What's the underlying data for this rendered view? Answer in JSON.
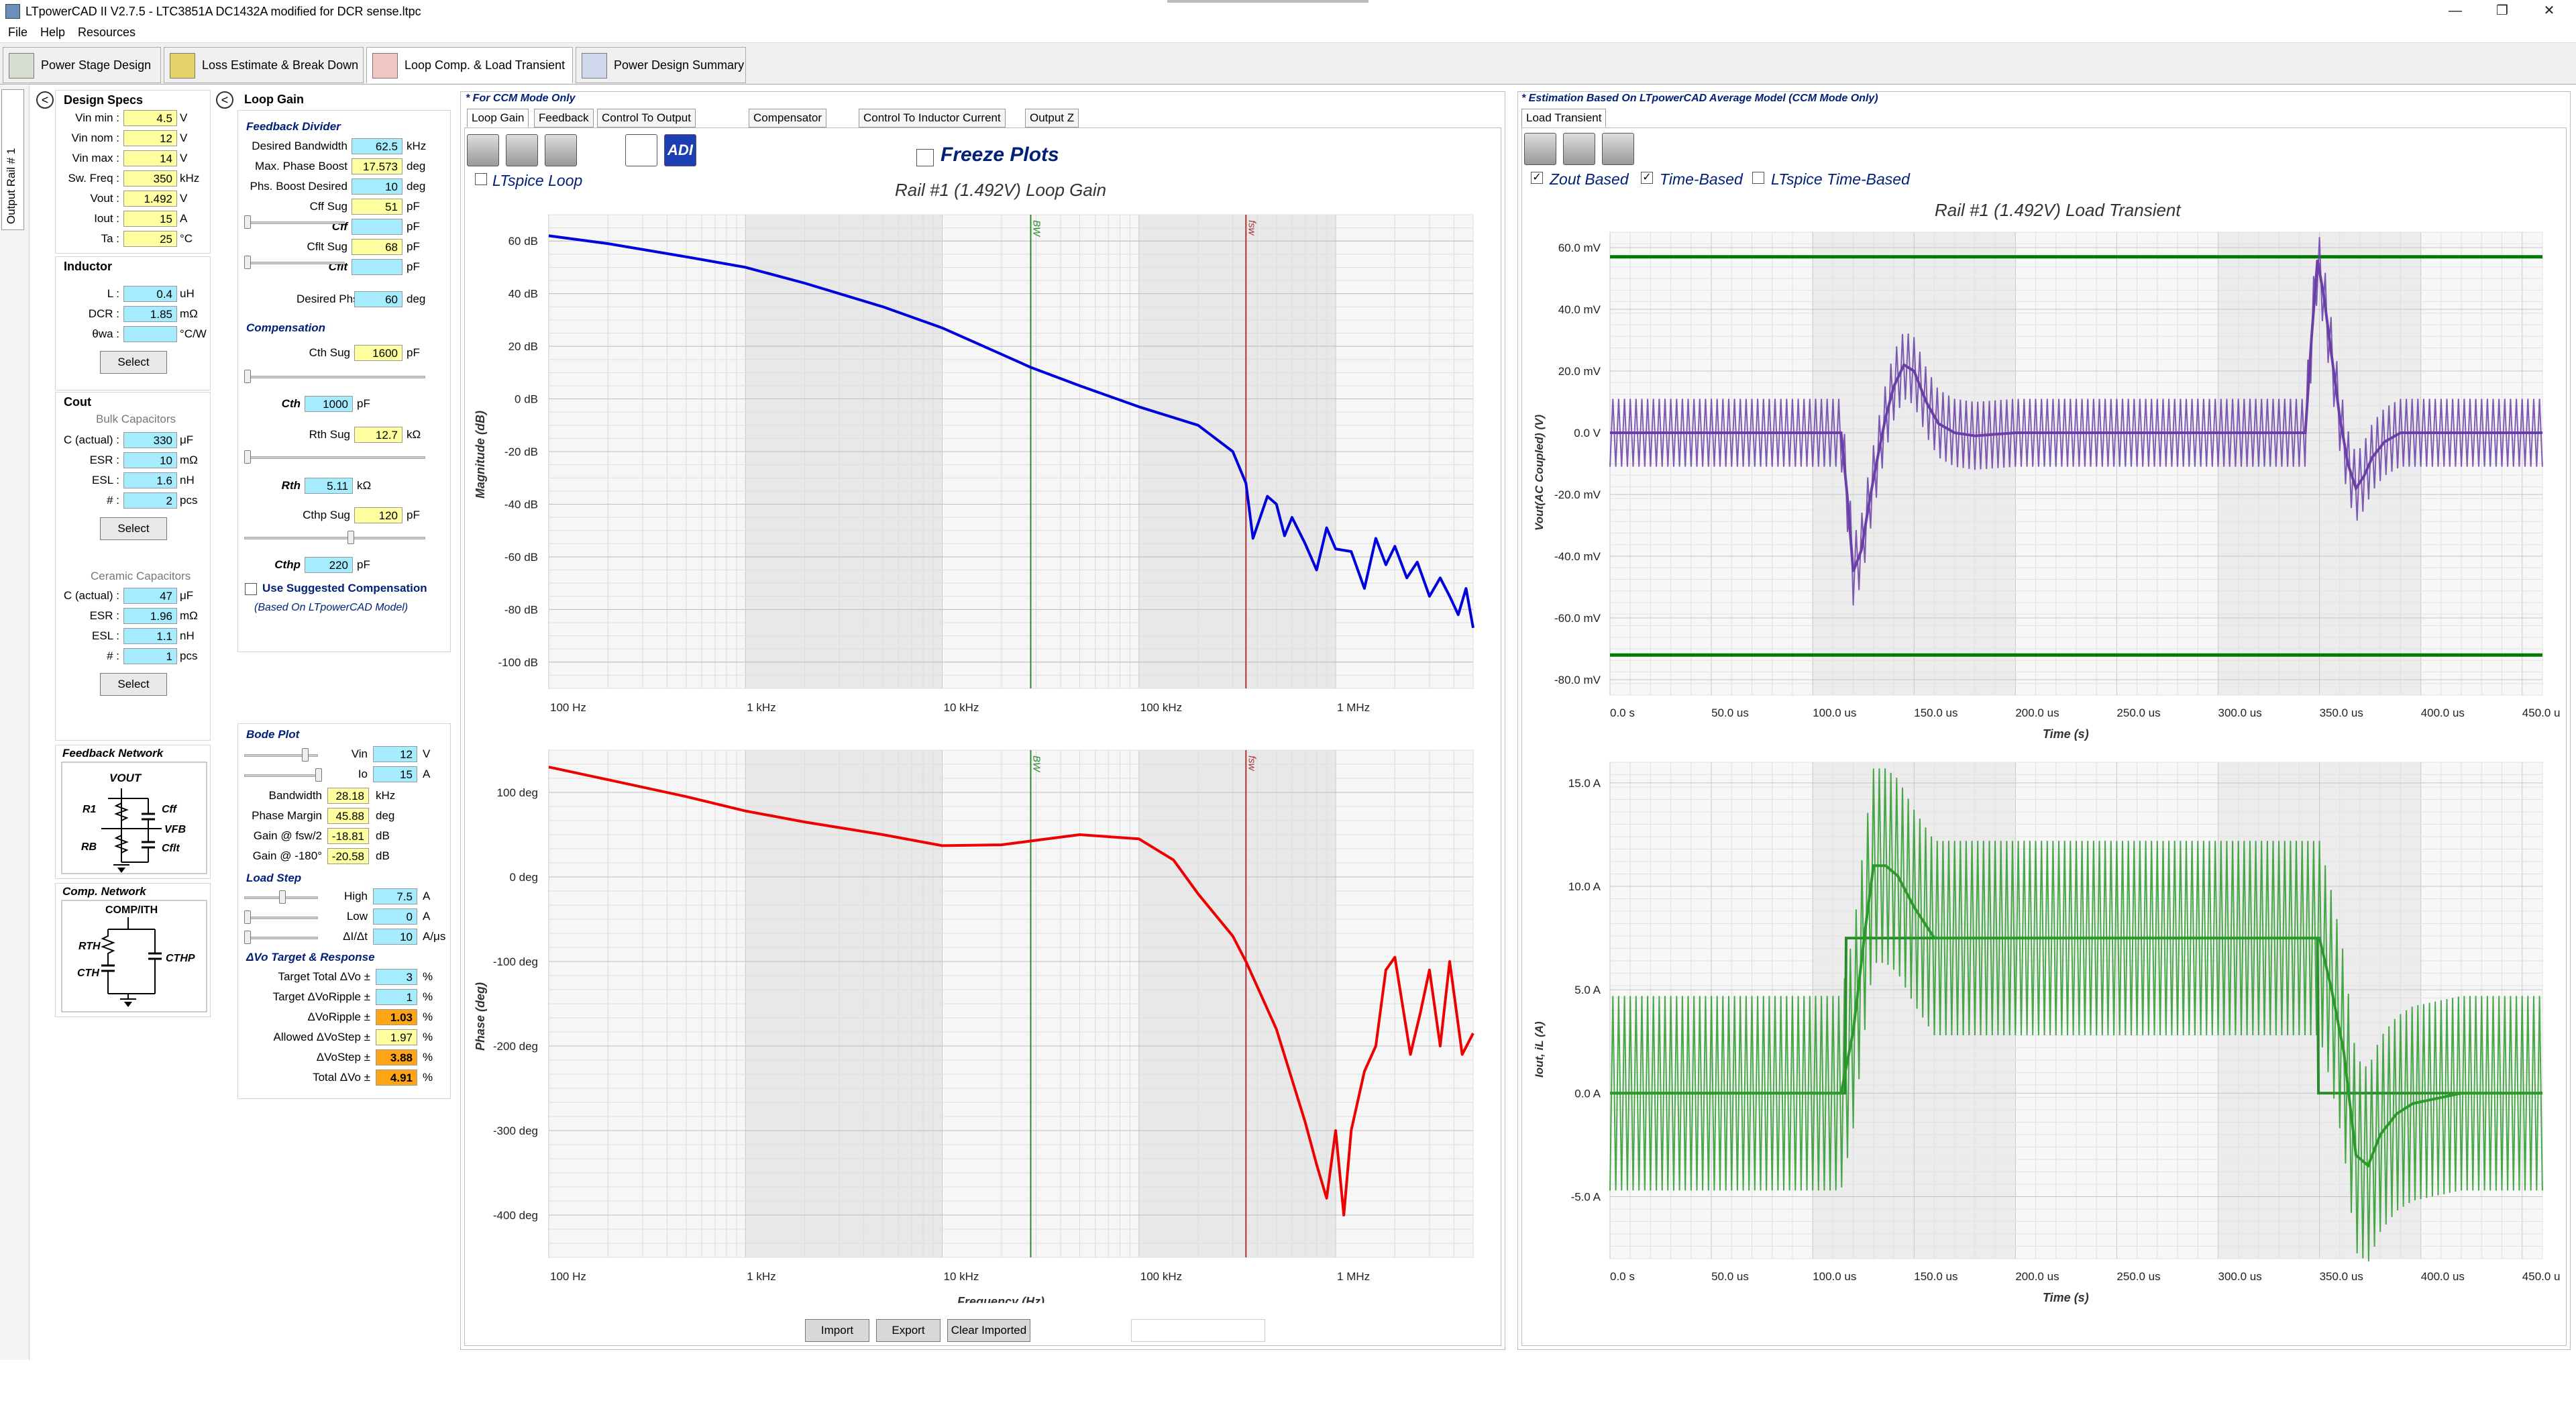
{
  "window": {
    "title": "LTpowerCAD II V2.7.5 - LTC3851A DC1432A modified for DCR sense.ltpc"
  },
  "menu": [
    "File",
    "Help",
    "Resources"
  ],
  "main_tabs": [
    "Power Stage Design",
    "Loss Estimate & Break Down",
    "Loop Comp. & Load Transient",
    "Power Design Summary"
  ],
  "rail_tab": "Output Rail # 1",
  "design_specs": {
    "title": "Design Specs",
    "rows": [
      {
        "label": "Vin min :",
        "value": "4.5",
        "unit": "V"
      },
      {
        "label": "Vin nom :",
        "value": "12",
        "unit": "V"
      },
      {
        "label": "Vin max :",
        "value": "14",
        "unit": "V"
      },
      {
        "label": "Sw. Freq :",
        "value": "350",
        "unit": "kHz"
      },
      {
        "label": "Vout :",
        "value": "1.492",
        "unit": "V"
      },
      {
        "label": "Iout :",
        "value": "15",
        "unit": "A"
      },
      {
        "label": "Ta :",
        "value": "25",
        "unit": "°C"
      }
    ]
  },
  "inductor": {
    "title": "Inductor",
    "rows": [
      {
        "label": "L :",
        "value": "0.4",
        "unit": "uH"
      },
      {
        "label": "DCR :",
        "value": "1.85",
        "unit": "mΩ"
      },
      {
        "label": "θwa :",
        "value": "",
        "unit": "°C/W"
      }
    ],
    "select": "Select"
  },
  "cout": {
    "title": "Cout",
    "bulk_title": "Bulk Capacitors",
    "bulk": [
      {
        "label": "C (actual) :",
        "value": "330",
        "unit": "μF"
      },
      {
        "label": "ESR :",
        "value": "10",
        "unit": "mΩ"
      },
      {
        "label": "ESL :",
        "value": "1.6",
        "unit": "nH"
      },
      {
        "label": "# :",
        "value": "2",
        "unit": "pcs"
      }
    ],
    "ceramic_title": "Ceramic Capacitors",
    "ceramic": [
      {
        "label": "C (actual) :",
        "value": "47",
        "unit": "μF"
      },
      {
        "label": "ESR :",
        "value": "1.96",
        "unit": "mΩ"
      },
      {
        "label": "ESL :",
        "value": "1.1",
        "unit": "nH"
      },
      {
        "label": "# :",
        "value": "1",
        "unit": "pcs"
      }
    ],
    "select": "Select"
  },
  "feedback_network": {
    "title": "Feedback Network",
    "vout": "VOUT",
    "r1": "R1",
    "rb": "RB",
    "cff": "Cff",
    "vfb": "VFB",
    "cflt": "Cflt"
  },
  "comp_network": {
    "title": "Comp. Network",
    "comp": "COMP/ITH",
    "rth": "RTH",
    "cth": "CTH",
    "cthp": "CTHP"
  },
  "loop_gain": {
    "title": "Loop Gain",
    "feedback_divider": "Feedback Divider",
    "fb_rows": [
      {
        "label": "Desired Bandwidth",
        "value": "62.5",
        "unit": "kHz",
        "style": "cyan"
      },
      {
        "label": "Max. Phase Boost",
        "value": "17.573",
        "unit": "deg",
        "style": "yel"
      },
      {
        "label": "Phs. Boost Desired",
        "value": "10",
        "unit": "deg",
        "style": "cyan"
      },
      {
        "label": "Cff Sug",
        "value": "51",
        "unit": "pF",
        "style": "yel"
      },
      {
        "label": "Cff",
        "value": "",
        "unit": "pF",
        "style": "cyan"
      },
      {
        "label": "Cflt Sug",
        "value": "68",
        "unit": "pF",
        "style": "yel"
      },
      {
        "label": "Cflt",
        "value": "",
        "unit": "pF",
        "style": "cyan"
      }
    ],
    "desired_margin": {
      "label": "Desired Phs. Margin",
      "value": "60",
      "unit": "deg"
    },
    "compensation": "Compensation",
    "cth_sug": {
      "label": "Cth Sug",
      "value": "1600",
      "unit": "pF"
    },
    "cth": {
      "label": "Cth",
      "value": "1000",
      "unit": "pF"
    },
    "rth_sug": {
      "label": "Rth Sug",
      "value": "12.7",
      "unit": "kΩ"
    },
    "rth": {
      "label": "Rth",
      "value": "5.11",
      "unit": "kΩ"
    },
    "cthp_sug": {
      "label": "Cthp Sug",
      "value": "120",
      "unit": "pF"
    },
    "cthp": {
      "label": "Cthp",
      "value": "220",
      "unit": "pF"
    },
    "use_suggested": "Use Suggested Compensation",
    "based_on": "(Based On LTpowerCAD Model)"
  },
  "bode": {
    "title": "Bode Plot",
    "vin": {
      "label": "Vin",
      "value": "12",
      "unit": "V"
    },
    "io": {
      "label": "Io",
      "value": "15",
      "unit": "A"
    },
    "rows": [
      {
        "label": "Bandwidth",
        "value": "28.18",
        "unit": "kHz"
      },
      {
        "label": "Phase Margin",
        "value": "45.88",
        "unit": "deg"
      },
      {
        "label": "Gain @ fsw/2",
        "value": "-18.81",
        "unit": "dB"
      },
      {
        "label": "Gain @ -180°",
        "value": "-20.58",
        "unit": "dB"
      }
    ]
  },
  "load_step": {
    "title": "Load Step",
    "rows": [
      {
        "label": "High",
        "value": "7.5",
        "unit": "A"
      },
      {
        "label": "Low",
        "value": "0",
        "unit": "A"
      },
      {
        "label": "ΔI/Δt",
        "value": "10",
        "unit": "A/μs"
      }
    ]
  },
  "dvo": {
    "title": "ΔVo Target & Response",
    "rows": [
      {
        "label": "Target Total ΔVo ±",
        "value": "3",
        "unit": "%",
        "style": "cyan"
      },
      {
        "label": "Target ΔVoRipple ±",
        "value": "1",
        "unit": "%",
        "style": "cyan"
      },
      {
        "label": "ΔVoRipple ±",
        "value": "1.03",
        "unit": "%",
        "style": "org"
      },
      {
        "label": "Allowed ΔVoStep ±",
        "value": "1.97",
        "unit": "%",
        "style": "yel"
      },
      {
        "label": "ΔVoStep ±",
        "value": "3.88",
        "unit": "%",
        "style": "org"
      },
      {
        "label": "Total ΔVo ±",
        "value": "4.91",
        "unit": "%",
        "style": "org"
      }
    ]
  },
  "center": {
    "ccm_note": "* For CCM Mode Only",
    "tabs": [
      "Loop Gain",
      "Feedback",
      "Control To Output",
      "Compensator",
      "Control To Inductor Current",
      "Output Z"
    ],
    "freeze": "Freeze Plots",
    "ltspice_loop": "LTspice Loop",
    "adi": "ADI",
    "plot_title": "Rail #1 (1.492V) Loop Gain",
    "buttons": [
      "Import",
      "Export",
      "Clear Imported"
    ]
  },
  "right": {
    "note": "* Estimation Based On LTpowerCAD Average Model (CCM Mode Only)",
    "tab": "Load Transient",
    "zout": "Zout Based",
    "time": "Time-Based",
    "ltspice_time": "LTspice Time-Based",
    "plot_title": "Rail #1 (1.492V) Load Transient"
  },
  "chart_data": [
    {
      "type": "line",
      "title": "",
      "xlabel": "Frequency (Hz)",
      "ylabel": "Magnitude (dB)",
      "x_scale": "log",
      "xlim": [
        100,
        5000000
      ],
      "ylim": [
        -110,
        70
      ],
      "xticks": [
        "100 Hz",
        "1 kHz",
        "10 kHz",
        "100 kHz",
        "1 MHz"
      ],
      "yticks": [
        "60 dB",
        "40 dB",
        "20 dB",
        "0 dB",
        "-20 dB",
        "-40 dB",
        "-60 dB",
        "-80 dB",
        "-100 dB"
      ],
      "markers": [
        {
          "label": "BW",
          "x": 28180,
          "color": "#2e8b2e"
        },
        {
          "label": "fsw",
          "x": 350000,
          "color": "#a33"
        }
      ],
      "series": [
        {
          "color": "#0000dd",
          "x": [
            100,
            200,
            500,
            1000,
            2000,
            5000,
            10000,
            20000,
            28180,
            50000,
            100000,
            200000,
            300000,
            350000,
            380000,
            450000,
            500000,
            550000,
            600000,
            700000,
            800000,
            900000,
            1000000,
            1200000,
            1400000,
            1600000,
            1800000,
            2000000,
            2300000,
            2600000,
            3000000,
            3400000,
            3800000,
            4200000,
            4600000,
            5000000
          ],
          "y": [
            62,
            59,
            54,
            50,
            44,
            35,
            27,
            17,
            12,
            5,
            -3,
            -10,
            -20,
            -32,
            -53,
            -37,
            -40,
            -52,
            -45,
            -55,
            -65,
            -49,
            -57,
            -58,
            -72,
            -53,
            -63,
            -56,
            -68,
            -62,
            -75,
            -68,
            -75,
            -82,
            -72,
            -87
          ]
        }
      ]
    },
    {
      "type": "line",
      "title": "",
      "xlabel": "Frequency (Hz)",
      "ylabel": "Phase (deg)",
      "x_scale": "log",
      "xlim": [
        100,
        5000000
      ],
      "ylim": [
        -450,
        150
      ],
      "xticks": [
        "100 Hz",
        "1 kHz",
        "10 kHz",
        "100 kHz",
        "1 MHz"
      ],
      "yticks": [
        "100 deg",
        "0 deg",
        "-100 deg",
        "-200 deg",
        "-300 deg",
        "-400 deg"
      ],
      "markers": [
        {
          "label": "BW",
          "x": 28180,
          "color": "#2e8b2e"
        },
        {
          "label": "fsw",
          "x": 350000,
          "color": "#a33"
        }
      ],
      "series": [
        {
          "color": "#ee0000",
          "x": [
            100,
            200,
            500,
            1000,
            2000,
            5000,
            10000,
            20000,
            50000,
            100000,
            150000,
            200000,
            300000,
            350000,
            500000,
            700000,
            800000,
            900000,
            1000000,
            1100000,
            1200000,
            1400000,
            1600000,
            1800000,
            2000000,
            2400000,
            2700000,
            3000000,
            3400000,
            3800000,
            4400000,
            5000000
          ],
          "y": [
            130,
            115,
            95,
            78,
            65,
            50,
            37,
            38,
            50,
            45,
            20,
            -20,
            -70,
            -100,
            -180,
            -290,
            -340,
            -380,
            -300,
            -400,
            -300,
            -230,
            -200,
            -110,
            -95,
            -210,
            -160,
            -110,
            -200,
            -100,
            -210,
            -185
          ]
        }
      ]
    },
    {
      "type": "line",
      "title": "",
      "xlabel": "Time (s)",
      "ylabel": "Vout(AC Coupled) (V)",
      "xlim": [
        0,
        460
      ],
      "ylim": [
        -85,
        65
      ],
      "xticks": [
        "0.0 s",
        "50.0 us",
        "100.0 us",
        "150.0 us",
        "200.0 us",
        "250.0 us",
        "300.0 us",
        "350.0 us",
        "400.0 us",
        "450.0 us"
      ],
      "yticks": [
        "60.0 mV",
        "40.0 mV",
        "20.0 mV",
        "0.0 V",
        "-20.0 mV",
        "-40.0 mV",
        "-60.0 mV",
        "-80.0 mV"
      ],
      "limits": [
        {
          "value": 57,
          "color": "#007a00"
        },
        {
          "value": -72,
          "color": "#007a00"
        }
      ],
      "series": [
        {
          "color": "#6a3fa8",
          "x": [
            0,
            114,
            117,
            120,
            124,
            128,
            132,
            136,
            140,
            145,
            150,
            156,
            162,
            170,
            180,
            200,
            300,
            343,
            346,
            349,
            352,
            356,
            360,
            364,
            368,
            372,
            376,
            382,
            390,
            400,
            420,
            460
          ],
          "y": [
            0,
            0,
            -20,
            -45,
            -38,
            -22,
            -8,
            5,
            15,
            22,
            20,
            10,
            3,
            0,
            -1,
            0,
            0,
            0,
            30,
            56,
            45,
            25,
            5,
            -10,
            -18,
            -14,
            -8,
            -3,
            0,
            0,
            0,
            0
          ],
          "ripple_amplitude": 11
        }
      ]
    },
    {
      "type": "line",
      "title": "",
      "xlabel": "Time (s)",
      "ylabel": "Iout, iL (A)",
      "xlim": [
        0,
        460
      ],
      "ylim": [
        -8,
        16
      ],
      "xticks": [
        "0.0 s",
        "50.0 us",
        "100.0 us",
        "150.0 us",
        "200.0 us",
        "250.0 us",
        "300.0 us",
        "350.0 us",
        "400.0 us",
        "450.0 us"
      ],
      "yticks": [
        "15.0 A",
        "10.0 A",
        "5.0 A",
        "0.0 A",
        "-5.0 A"
      ],
      "series": [
        {
          "color": "#2a8a2a",
          "name": "",
          "x": [
            0,
            116,
            116.5,
            349,
            349.5,
            460
          ],
          "y": [
            0,
            0,
            7.5,
            7.5,
            0,
            0
          ]
        },
        {
          "color": "#2a9a2a",
          "x": [
            0,
            114,
            120,
            126,
            130,
            136,
            142,
            150,
            160,
            180,
            200,
            345,
            350,
            356,
            362,
            368,
            374,
            380,
            388,
            396,
            420,
            460
          ],
          "y": [
            0,
            0,
            3,
            8,
            11,
            11,
            10.5,
            9,
            7.5,
            7.5,
            7.5,
            7.5,
            7.5,
            5,
            2,
            -3,
            -3.5,
            -2,
            -1,
            -0.5,
            0,
            0
          ],
          "ripple_amplitude": 4.7
        }
      ]
    }
  ]
}
